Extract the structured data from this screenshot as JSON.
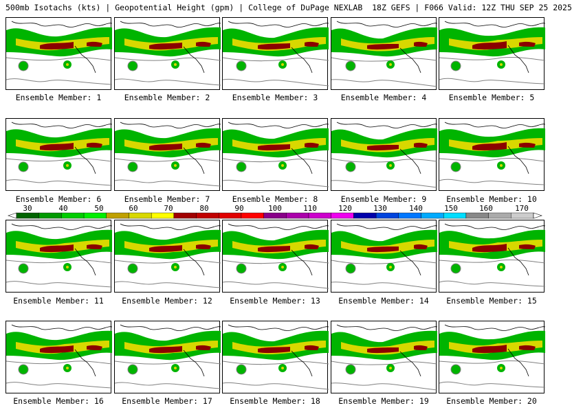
{
  "header": {
    "title": "500mb Isotachs (kts) | Geopotential Height (gpm) | College of DuPage NEXLAB  18Z GEFS | F066 Valid: 12Z THU SEP 25 2025"
  },
  "panels": [
    {
      "label": "Ensemble Member: 1"
    },
    {
      "label": "Ensemble Member: 2"
    },
    {
      "label": "Ensemble Member: 3"
    },
    {
      "label": "Ensemble Member: 4"
    },
    {
      "label": "Ensemble Member: 5"
    },
    {
      "label": "Ensemble Member: 6"
    },
    {
      "label": "Ensemble Member: 7"
    },
    {
      "label": "Ensemble Member: 8"
    },
    {
      "label": "Ensemble Member: 9"
    },
    {
      "label": "Ensemble Member: 10"
    },
    {
      "label": "Ensemble Member: 11"
    },
    {
      "label": "Ensemble Member: 12"
    },
    {
      "label": "Ensemble Member: 13"
    },
    {
      "label": "Ensemble Member: 14"
    },
    {
      "label": "Ensemble Member: 15"
    },
    {
      "label": "Ensemble Member: 16"
    },
    {
      "label": "Ensemble Member: 17"
    },
    {
      "label": "Ensemble Member: 18"
    },
    {
      "label": "Ensemble Member: 19"
    },
    {
      "label": "Ensemble Member: 20"
    }
  ],
  "colorbar": {
    "ticks": [
      "30",
      "40",
      "50",
      "60",
      "70",
      "80",
      "90",
      "100",
      "110",
      "120",
      "130",
      "140",
      "150",
      "160",
      "170"
    ],
    "colors": [
      "#006400",
      "#009900",
      "#00cc00",
      "#00ee00",
      "#bfa000",
      "#d8d800",
      "#ffff00",
      "#a00000",
      "#c00000",
      "#e00000",
      "#ff0000",
      "#880088",
      "#aa00aa",
      "#cc00cc",
      "#ee00ee",
      "#0000aa",
      "#0044dd",
      "#0077ff",
      "#00aaff",
      "#00ddff",
      "#888888",
      "#aaaaaa",
      "#cccccc"
    ]
  },
  "palette": {
    "jet_outer": "#00b400",
    "jet_mid": "#d8d800",
    "jet_core": "#8b0000",
    "contour": "#808080",
    "coastline": "#000000"
  }
}
